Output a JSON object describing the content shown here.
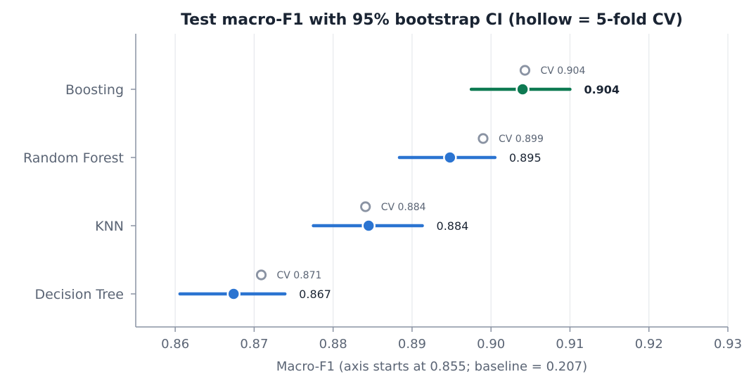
{
  "chart_data": {
    "type": "scatter",
    "title": "Test macro-F1 with 95% bootstrap CI (hollow = 5-fold CV)",
    "xlabel": "Macro-F1 (axis starts at 0.855; baseline = 0.207)",
    "ylabel": "",
    "xlim": [
      0.855,
      0.93
    ],
    "xticks": [
      0.86,
      0.87,
      0.88,
      0.89,
      0.9,
      0.91,
      0.92,
      0.93
    ],
    "xtick_labels": [
      "0.86",
      "0.87",
      "0.88",
      "0.89",
      "0.90",
      "0.91",
      "0.92",
      "0.93"
    ],
    "grid": "vertical",
    "categories": [
      "Boosting",
      "Random Forest",
      "KNN",
      "Decision Tree"
    ],
    "points": [
      {
        "model": "Boosting",
        "test": 0.904,
        "ci_low": 0.8975,
        "ci_high": 0.91,
        "cv": 0.9043,
        "test_label": "0.904",
        "cv_label": "CV 0.904",
        "highlight": true
      },
      {
        "model": "Random Forest",
        "test": 0.8948,
        "ci_low": 0.8884,
        "ci_high": 0.9005,
        "cv": 0.899,
        "test_label": "0.895",
        "cv_label": "CV 0.899",
        "highlight": false
      },
      {
        "model": "KNN",
        "test": 0.8845,
        "ci_low": 0.8775,
        "ci_high": 0.8913,
        "cv": 0.8841,
        "test_label": "0.884",
        "cv_label": "CV 0.884",
        "highlight": false
      },
      {
        "model": "Decision Tree",
        "test": 0.8674,
        "ci_low": 0.8606,
        "ci_high": 0.8739,
        "cv": 0.8709,
        "test_label": "0.867",
        "cv_label": "CV 0.871",
        "highlight": false
      }
    ],
    "colors": {
      "highlight": "#0e7a52",
      "default": "#2b74d1",
      "cv_marker": "#8a93a3",
      "axis": "#8a93a3",
      "grid": "#e6e8ec"
    }
  }
}
